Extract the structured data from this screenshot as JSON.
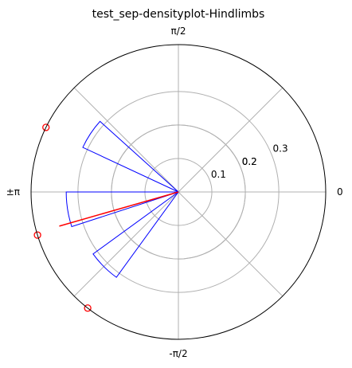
{
  "chart_data": {
    "type": "polar-density",
    "title": "test_sep-densityplot-Hindlimbs",
    "angle_tick_labels": [
      {
        "label": "0",
        "angle_deg": 0
      },
      {
        "label": "π/2",
        "angle_deg": 90
      },
      {
        "label": "±π",
        "angle_deg": 180
      },
      {
        "label": "-π/2",
        "angle_deg": 270
      }
    ],
    "radial_ticks": [
      {
        "label": "0.1",
        "value": 0.1
      },
      {
        "label": "0.2",
        "value": 0.2
      },
      {
        "label": "0.2",
        "value": 0.2
      },
      {
        "label": "0.3",
        "value": 0.3
      }
    ],
    "radial_max": 0.44,
    "grid": true,
    "bars": [
      {
        "start_deg": 138,
        "end_deg": 155,
        "value": 0.315
      },
      {
        "start_deg": 180,
        "end_deg": 198,
        "value": 0.335
      },
      {
        "start_deg": 216,
        "end_deg": 234,
        "value": 0.315
      }
    ],
    "mean_vector": {
      "angle_deg": 196,
      "length": 0.37
    },
    "points": [
      {
        "angle_deg": 154,
        "value": 0.44
      },
      {
        "angle_deg": 197,
        "value": 0.44
      },
      {
        "angle_deg": 232,
        "value": 0.44
      }
    ],
    "colors": {
      "bars": "#0000ff",
      "mean_vector": "#ff0000",
      "points": "#ff0000",
      "grid": "#b0b0b0",
      "axis": "#000000"
    }
  }
}
